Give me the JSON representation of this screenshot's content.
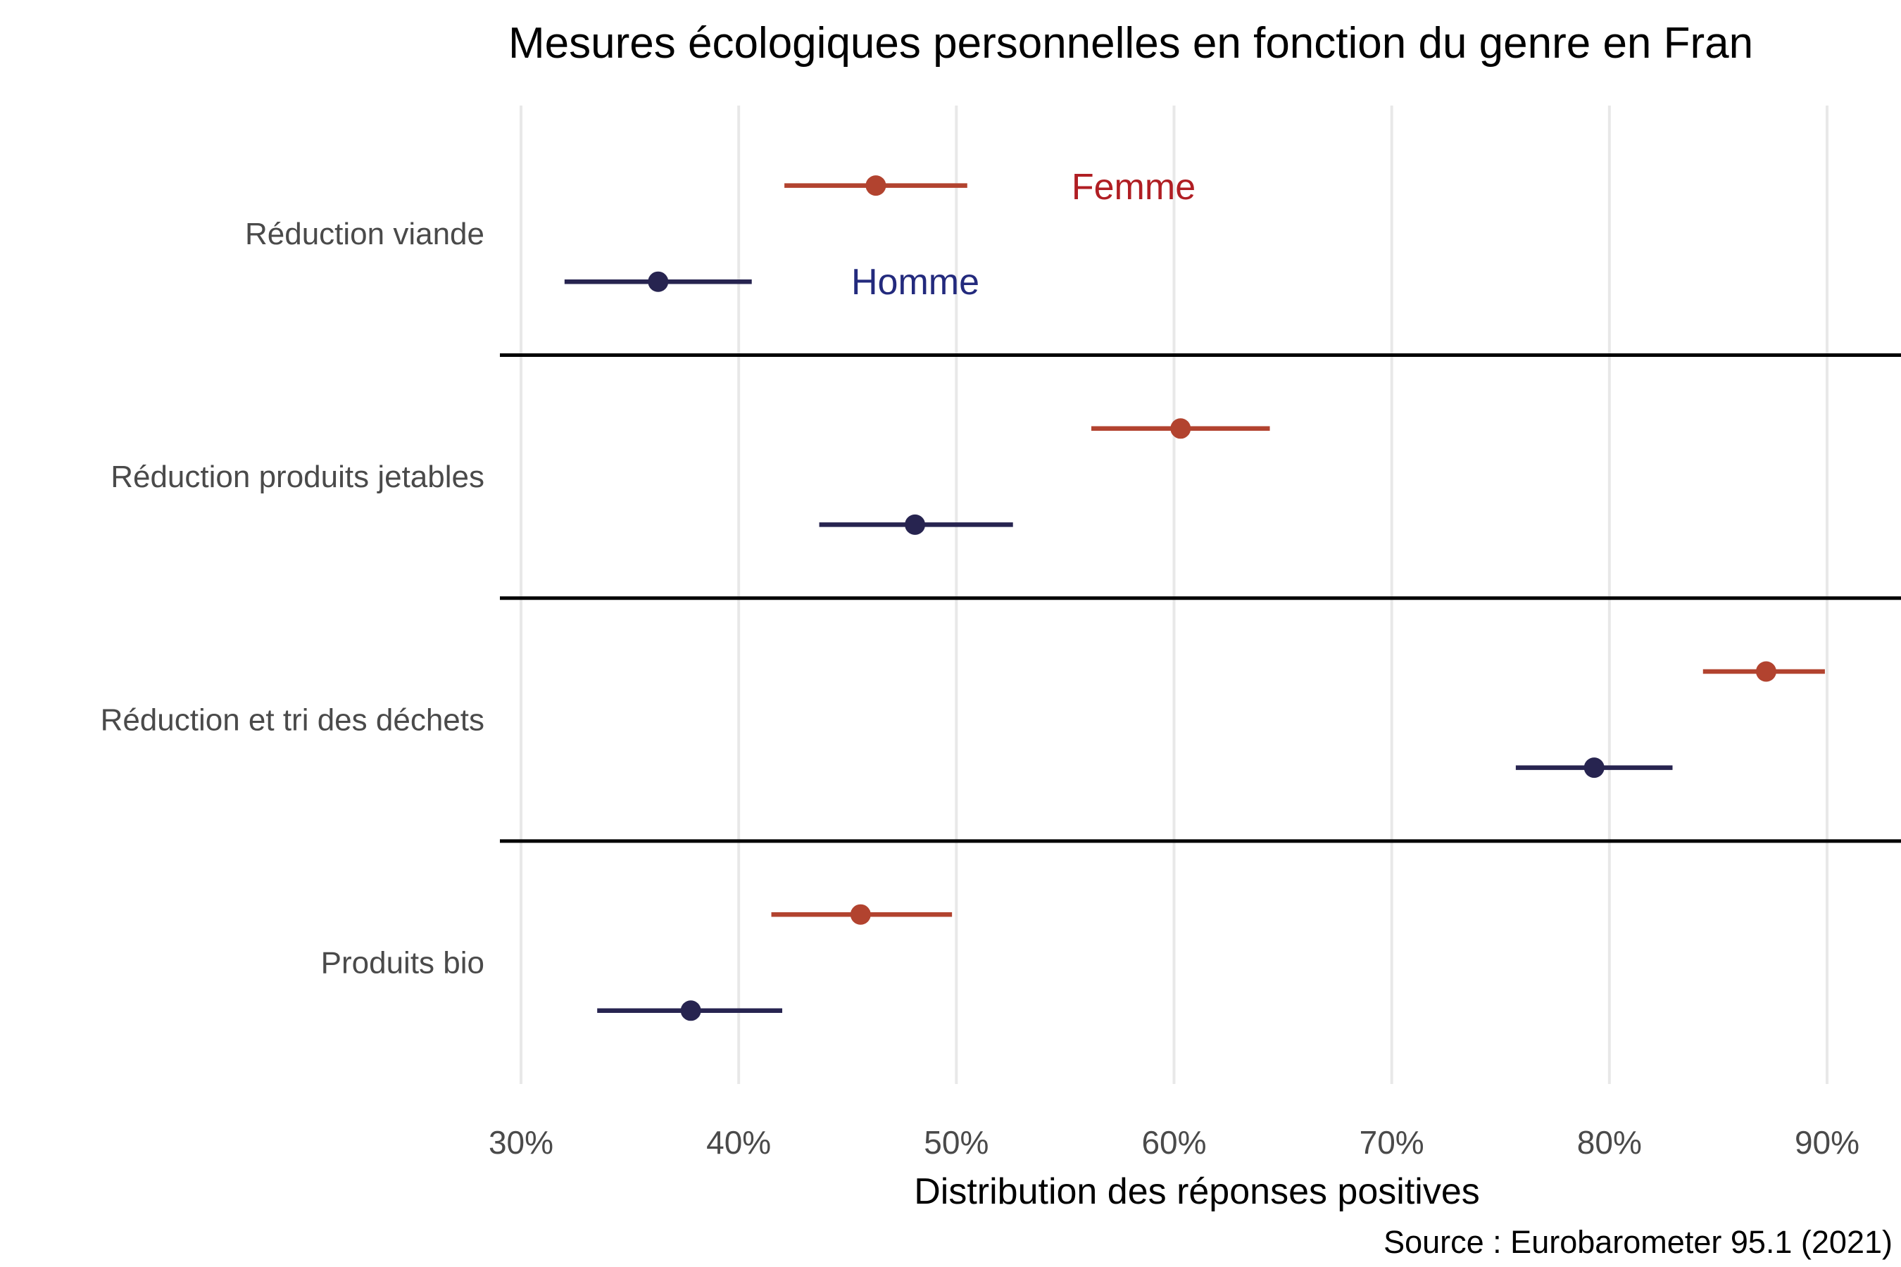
{
  "colors": {
    "background": "#FFFFFF",
    "grid": "#E8E8E8",
    "separator": "#000000",
    "axis_text": "#4A4A4A"
  },
  "chart_data": {
    "type": "scatter",
    "subtype": "dot-plot-with-confidence-intervals-faceted-by-category",
    "title": "Mesures écologiques personnelles en fonction du genre en Fran",
    "title_truncated_at_right_edge": true,
    "xlabel": "Distribution des réponses positives",
    "source": "Source : Eurobarometer 95.1 (2021)",
    "x_ticks": [
      {
        "value": 30,
        "label": "30%"
      },
      {
        "value": 40,
        "label": "40%"
      },
      {
        "value": 50,
        "label": "50%"
      },
      {
        "value": 60,
        "label": "60%"
      },
      {
        "value": 70,
        "label": "70%"
      },
      {
        "value": 80,
        "label": "80%"
      },
      {
        "value": 90,
        "label": "90%"
      }
    ],
    "xlim": [
      29.0,
      93.4
    ],
    "grid": "vertical-gridlines-only",
    "legend_position": "inline-text-annotations-in-first-facet",
    "categories": [
      "Réduction viande",
      "Réduction produits jetables",
      "Réduction et tri des déchets",
      "Produits bio"
    ],
    "series": [
      {
        "name": "Femme",
        "color": "#B2432F",
        "label_color": "#B01E23",
        "values": [
          46.3,
          60.3,
          87.2,
          45.6
        ],
        "ci_low": [
          42.1,
          56.2,
          84.3,
          41.5
        ],
        "ci_high": [
          50.5,
          64.4,
          89.9,
          49.8
        ]
      },
      {
        "name": "Homme",
        "color": "#272450",
        "label_color": "#232A7D",
        "values": [
          36.3,
          48.1,
          79.3,
          37.8
        ],
        "ci_low": [
          32.0,
          43.7,
          75.7,
          33.5
        ],
        "ci_high": [
          40.6,
          52.6,
          82.9,
          42.0
        ]
      }
    ]
  }
}
